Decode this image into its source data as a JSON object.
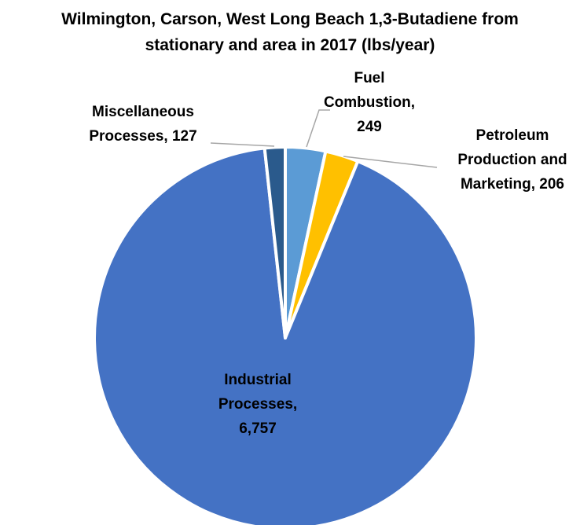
{
  "chart_data": {
    "type": "pie",
    "title": "Wilmington, Carson, West Long Beach 1,3-Butadiene from stationary and area in 2017 (lbs/year)",
    "categories": [
      "Fuel Combustion",
      "Petroleum Production and Marketing",
      "Industrial Processes",
      "Miscellaneous Processes"
    ],
    "values": [
      249,
      206,
      6757,
      127
    ],
    "value_labels": [
      "249",
      "206",
      "6,757",
      "127"
    ],
    "colors": [
      "#5b9bd5",
      "#ffc000",
      "#4472c4",
      "#2a5a8c"
    ]
  }
}
